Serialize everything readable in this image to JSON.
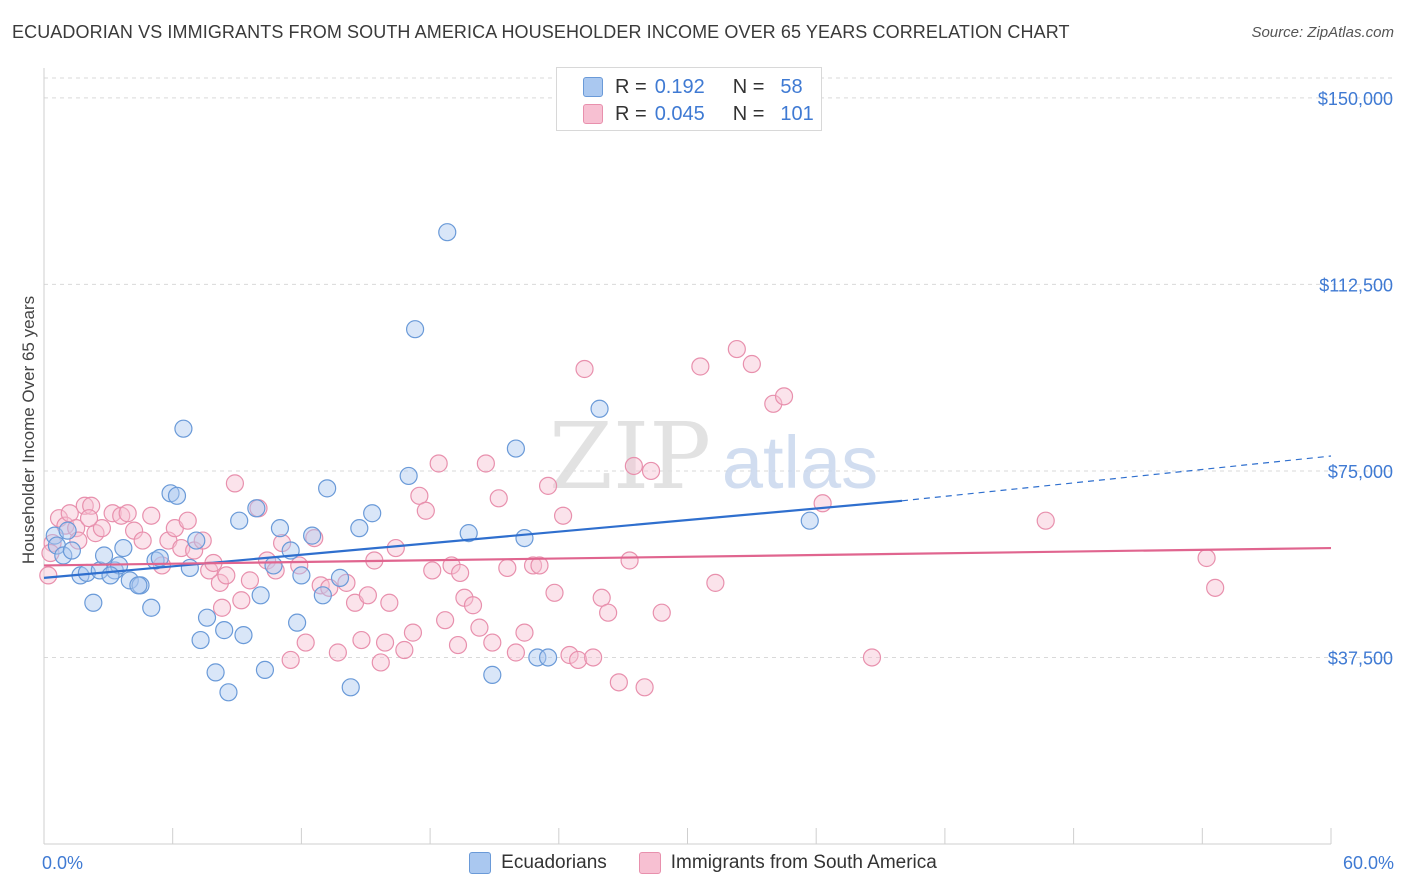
{
  "header": {
    "title": "ECUADORIAN VS IMMIGRANTS FROM SOUTH AMERICA HOUSEHOLDER INCOME OVER 65 YEARS CORRELATION CHART",
    "source": "Source: ZipAtlas.com"
  },
  "legend": {
    "rows": [
      {
        "r_label": "R =",
        "r_value": "0.192",
        "n_label": "N =",
        "n_value": "58"
      },
      {
        "r_label": "R =",
        "r_value": "0.045",
        "n_label": "N =",
        "n_value": "101"
      }
    ]
  },
  "bottom_legend": {
    "series1": "Ecuadorians",
    "series2": "Immigrants from South America"
  },
  "colors": {
    "blue_fill": "#aac8f0",
    "blue_stroke": "#6a9ad8",
    "blue_line": "#2f6fce",
    "pink_fill": "#f7c0d2",
    "pink_stroke": "#e890ad",
    "pink_line": "#e0658f",
    "axis_text": "#3f7ad3",
    "grid": "#d9d9d9"
  },
  "watermark": {
    "zip": "ZIP",
    "atlas": "atlas"
  },
  "chart_data": {
    "type": "scatter",
    "title": "ECUADORIAN VS IMMIGRANTS FROM SOUTH AMERICA HOUSEHOLDER INCOME OVER 65 YEARS CORRELATION CHART",
    "xlabel": "",
    "ylabel": "Householder Income Over 65 years",
    "xlim": [
      0,
      60
    ],
    "ylim": [
      0,
      154000
    ],
    "x_tick_labels": [
      "0.0%",
      "60.0%"
    ],
    "y_ticks": [
      37500,
      75000,
      112500,
      150000
    ],
    "y_tick_labels": [
      "$37,500",
      "$75,000",
      "$112,500",
      "$150,000"
    ],
    "grid": true,
    "legend_position": "top-center",
    "series": [
      {
        "name": "Ecuadorians",
        "r": 0.192,
        "n": 58,
        "trend": {
          "x0": 0,
          "y0": 53500,
          "x1": 40,
          "y1": 69000,
          "dashed_to_x": 60,
          "dashed_to_y": 78000
        },
        "points": [
          [
            0.5,
            62000
          ],
          [
            0.6,
            60000
          ],
          [
            0.9,
            58000
          ],
          [
            1.3,
            59000
          ],
          [
            1.7,
            54000
          ],
          [
            2.0,
            54500
          ],
          [
            2.3,
            48500
          ],
          [
            2.6,
            55000
          ],
          [
            2.8,
            58000
          ],
          [
            3.3,
            55000
          ],
          [
            3.5,
            56000
          ],
          [
            3.7,
            59500
          ],
          [
            4.0,
            53000
          ],
          [
            4.5,
            52000
          ],
          [
            5.0,
            47500
          ],
          [
            5.2,
            57000
          ],
          [
            5.4,
            57500
          ],
          [
            5.9,
            70500
          ],
          [
            6.2,
            70000
          ],
          [
            6.5,
            83500
          ],
          [
            6.8,
            55500
          ],
          [
            7.1,
            61000
          ],
          [
            7.3,
            41000
          ],
          [
            7.6,
            45500
          ],
          [
            8.0,
            34500
          ],
          [
            8.4,
            43000
          ],
          [
            8.6,
            30500
          ],
          [
            9.1,
            65000
          ],
          [
            9.3,
            42000
          ],
          [
            9.9,
            67500
          ],
          [
            10.1,
            50000
          ],
          [
            10.3,
            35000
          ],
          [
            10.7,
            56000
          ],
          [
            11.0,
            63500
          ],
          [
            11.5,
            59000
          ],
          [
            11.8,
            44500
          ],
          [
            12.0,
            54000
          ],
          [
            12.5,
            62000
          ],
          [
            13.0,
            50000
          ],
          [
            13.2,
            71500
          ],
          [
            13.8,
            53500
          ],
          [
            14.3,
            31500
          ],
          [
            14.7,
            63500
          ],
          [
            15.3,
            66500
          ],
          [
            17.0,
            74000
          ],
          [
            17.3,
            103500
          ],
          [
            18.8,
            123000
          ],
          [
            19.8,
            62500
          ],
          [
            20.9,
            34000
          ],
          [
            22.0,
            79500
          ],
          [
            22.4,
            61500
          ],
          [
            23.0,
            37500
          ],
          [
            23.5,
            37500
          ],
          [
            25.9,
            87500
          ],
          [
            35.7,
            65000
          ],
          [
            4.4,
            52000
          ],
          [
            1.1,
            63000
          ],
          [
            3.1,
            54000
          ]
        ]
      },
      {
        "name": "Immigrants from South America",
        "r": 0.045,
        "n": 101,
        "trend": {
          "x0": 0,
          "y0": 56000,
          "x1": 60,
          "y1": 59500
        },
        "points": [
          [
            0.2,
            54000
          ],
          [
            0.4,
            60500
          ],
          [
            0.7,
            65500
          ],
          [
            1.0,
            64000
          ],
          [
            1.2,
            66500
          ],
          [
            1.5,
            63500
          ],
          [
            1.9,
            68000
          ],
          [
            2.2,
            68000
          ],
          [
            2.4,
            62500
          ],
          [
            2.7,
            63500
          ],
          [
            3.2,
            66500
          ],
          [
            3.6,
            66000
          ],
          [
            3.9,
            66500
          ],
          [
            4.2,
            63000
          ],
          [
            4.6,
            61000
          ],
          [
            5.0,
            66000
          ],
          [
            5.5,
            56000
          ],
          [
            5.8,
            61000
          ],
          [
            6.1,
            63500
          ],
          [
            6.4,
            59500
          ],
          [
            6.7,
            65000
          ],
          [
            7.0,
            59000
          ],
          [
            7.4,
            61000
          ],
          [
            7.7,
            55000
          ],
          [
            7.9,
            56500
          ],
          [
            8.2,
            52500
          ],
          [
            8.5,
            54000
          ],
          [
            8.9,
            72500
          ],
          [
            9.2,
            49000
          ],
          [
            9.6,
            53000
          ],
          [
            10.0,
            67500
          ],
          [
            10.4,
            57000
          ],
          [
            10.8,
            55000
          ],
          [
            11.1,
            60500
          ],
          [
            11.5,
            37000
          ],
          [
            11.9,
            56000
          ],
          [
            12.2,
            40500
          ],
          [
            12.6,
            61500
          ],
          [
            12.9,
            52000
          ],
          [
            13.3,
            51500
          ],
          [
            13.7,
            38500
          ],
          [
            14.1,
            52500
          ],
          [
            14.5,
            48500
          ],
          [
            14.8,
            41000
          ],
          [
            15.1,
            50000
          ],
          [
            15.4,
            57000
          ],
          [
            15.7,
            36500
          ],
          [
            16.1,
            48500
          ],
          [
            16.4,
            59500
          ],
          [
            16.8,
            39000
          ],
          [
            17.2,
            42500
          ],
          [
            17.5,
            70000
          ],
          [
            17.8,
            67000
          ],
          [
            18.1,
            55000
          ],
          [
            18.4,
            76500
          ],
          [
            18.7,
            45000
          ],
          [
            19.0,
            56000
          ],
          [
            19.3,
            40000
          ],
          [
            19.6,
            49500
          ],
          [
            20.0,
            48000
          ],
          [
            20.3,
            43500
          ],
          [
            20.6,
            76500
          ],
          [
            20.9,
            40500
          ],
          [
            21.2,
            69500
          ],
          [
            21.6,
            55500
          ],
          [
            22.0,
            38500
          ],
          [
            22.4,
            42500
          ],
          [
            22.8,
            56000
          ],
          [
            23.1,
            56000
          ],
          [
            23.5,
            72000
          ],
          [
            23.8,
            50500
          ],
          [
            24.2,
            66000
          ],
          [
            24.5,
            38000
          ],
          [
            24.9,
            37000
          ],
          [
            25.2,
            95500
          ],
          [
            25.6,
            37500
          ],
          [
            26.0,
            49500
          ],
          [
            26.3,
            46500
          ],
          [
            26.8,
            32500
          ],
          [
            27.3,
            57000
          ],
          [
            27.5,
            76000
          ],
          [
            28.0,
            31500
          ],
          [
            28.3,
            75000
          ],
          [
            28.8,
            46500
          ],
          [
            30.6,
            96000
          ],
          [
            31.3,
            52500
          ],
          [
            32.3,
            99500
          ],
          [
            33.0,
            96500
          ],
          [
            34.0,
            88500
          ],
          [
            34.5,
            90000
          ],
          [
            36.3,
            68500
          ],
          [
            38.6,
            37500
          ],
          [
            46.7,
            65000
          ],
          [
            54.2,
            57500
          ],
          [
            54.6,
            51500
          ],
          [
            0.3,
            58500
          ],
          [
            1.6,
            61000
          ],
          [
            2.1,
            65500
          ],
          [
            15.9,
            40500
          ],
          [
            19.4,
            54500
          ],
          [
            8.3,
            47500
          ]
        ]
      }
    ]
  }
}
